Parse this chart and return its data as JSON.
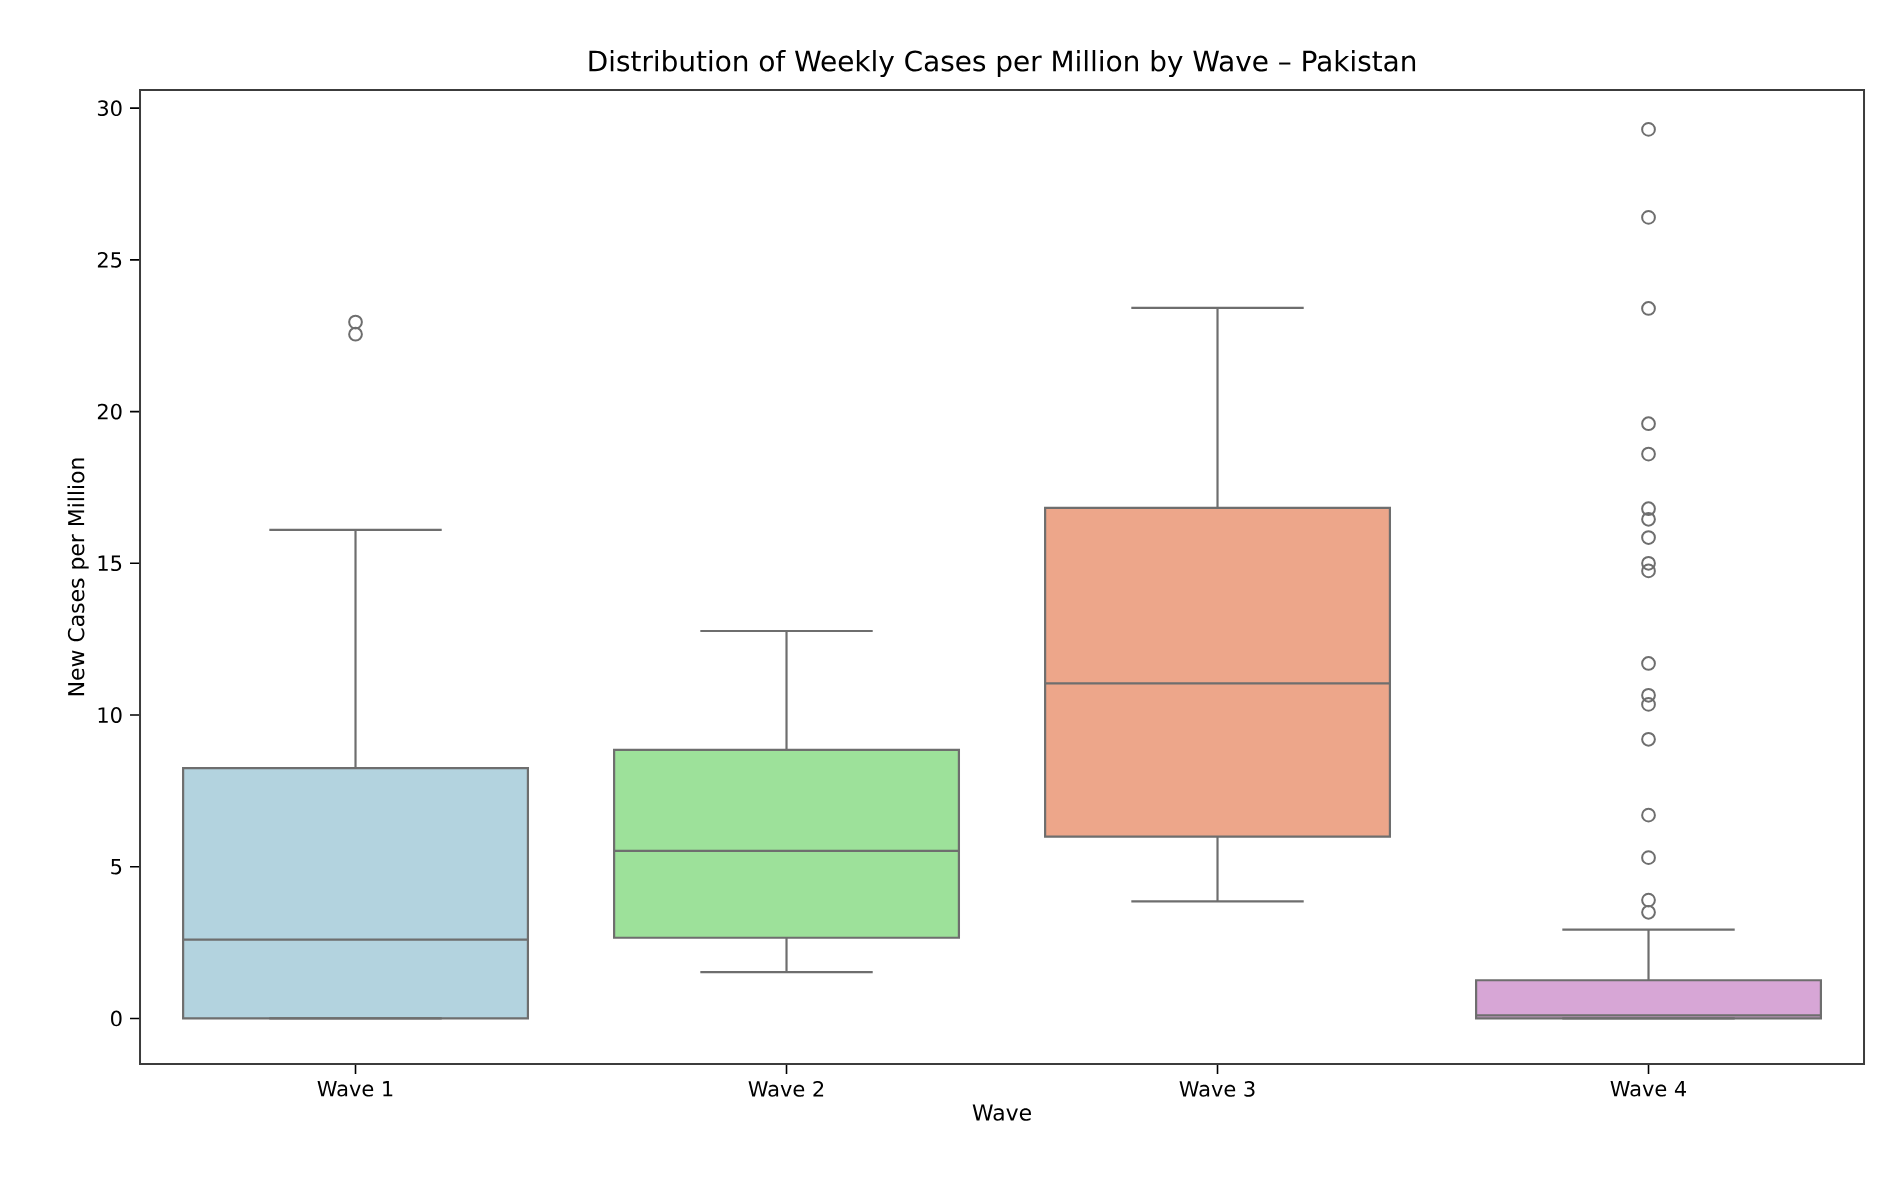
{
  "chart_data": {
    "type": "box",
    "title": "Distribution of Weekly Cases per Million by Wave – Pakistan",
    "xlabel": "Wave",
    "ylabel": "New Cases per Million",
    "categories": [
      "Wave 1",
      "Wave 2",
      "Wave 3",
      "Wave 4"
    ],
    "colors": [
      "#b3d3df",
      "#9de19a",
      "#eda68a",
      "#d7a6d6"
    ],
    "boxes": [
      {
        "low": 0,
        "q1": 0,
        "median": 2.6,
        "q3": 8.25,
        "high": 16.1,
        "outliers": [
          22.95,
          22.55
        ]
      },
      {
        "low": 1.53,
        "q1": 2.66,
        "median": 5.52,
        "q3": 8.85,
        "high": 12.77
      },
      {
        "low": 3.86,
        "q1": 5.99,
        "median": 11.04,
        "q3": 16.83,
        "high": 23.42
      },
      {
        "low": 0,
        "q1": 0,
        "median": 0.1,
        "q3": 1.26,
        "high": 2.93,
        "outliers": [
          29.3,
          26.4,
          23.4,
          19.6,
          18.6,
          16.8,
          16.45,
          15.85,
          15.0,
          14.75,
          11.7,
          10.65,
          10.35,
          9.2,
          6.7,
          5.3,
          3.9,
          3.5
        ]
      }
    ],
    "ylim": [
      -1.5,
      30.6
    ],
    "yticks": [
      0,
      5,
      10,
      15,
      20,
      25,
      30
    ]
  }
}
